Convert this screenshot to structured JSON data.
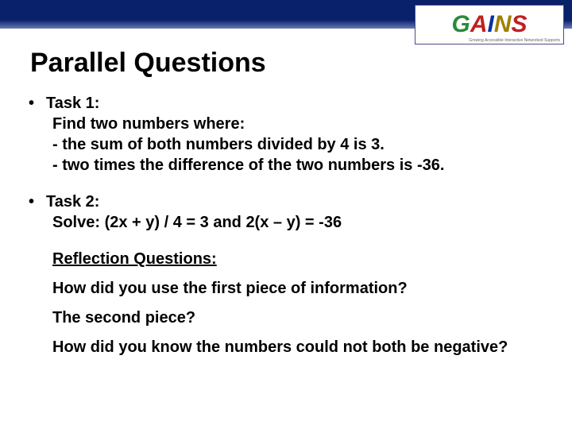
{
  "header": {
    "bar_color_top": "#09206a",
    "bar_color_bottom": "#6a7ab5",
    "logo_text": "GAINS",
    "logo_sub": "Growing Accessible Interactive Networked Supports",
    "logo_colors": {
      "G": "#2a8a3a",
      "A": "#c02020",
      "I": "#0030a0",
      "N": "#a08000",
      "S": "#c02020"
    }
  },
  "title": "Parallel Questions",
  "bullets": [
    {
      "label": "Task 1:",
      "lines": [
        "Find two numbers where:",
        "- the sum of both numbers divided by 4 is 3.",
        "-  two times the difference of the two numbers is -36."
      ]
    },
    {
      "label": "Task 2:",
      "lines": [
        "Solve: (2x + y) / 4 = 3 and 2(x – y) = -36"
      ]
    }
  ],
  "reflection": {
    "heading": "Reflection Questions:",
    "items": [
      "How did you use the first piece of information?",
      "The second piece?",
      "How did you know the numbers could not both be negative?"
    ]
  },
  "styling": {
    "title_fontsize": 34,
    "body_fontsize": 20,
    "font_family": "Arial",
    "font_weight": "bold",
    "text_color": "#000000",
    "background_color": "#ffffff"
  }
}
